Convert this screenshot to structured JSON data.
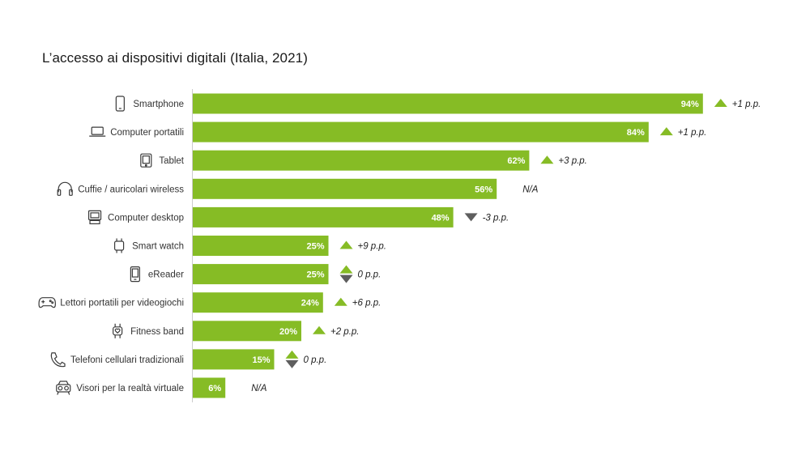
{
  "chart_data": {
    "type": "bar",
    "orientation": "horizontal",
    "title": "L’accesso ai dispositivi digitali (Italia, 2021)",
    "xlim": [
      0,
      100
    ],
    "grid": false,
    "categories": [
      "Smartphone",
      "Computer portatili",
      "Tablet",
      "Cuffie / auricolari wireless",
      "Computer desktop",
      "Smart watch",
      "eReader",
      "Lettori portatili per videogiochi",
      "Fitness band",
      "Telefoni cellulari tradizionali",
      "Visori per la realtà virtuale"
    ],
    "values": [
      94,
      84,
      62,
      56,
      48,
      25,
      25,
      24,
      20,
      15,
      6
    ],
    "value_labels": [
      "94%",
      "84%",
      "62%",
      "56%",
      "48%",
      "25%",
      "25%",
      "24%",
      "20%",
      "15%",
      "6%"
    ],
    "changes": [
      "+1 p.p.",
      "+1 p.p.",
      "+3 p.p.",
      "N/A",
      "-3 p.p.",
      "+9 p.p.",
      "0 p.p.",
      "+6 p.p.",
      "+2 p.p.",
      "0 p.p.",
      "N/A"
    ],
    "change_direction": [
      "up",
      "up",
      "up",
      "none",
      "down",
      "up",
      "flat",
      "up",
      "up",
      "flat",
      "none"
    ],
    "icons": [
      "smartphone-icon",
      "laptop-icon",
      "tablet-icon",
      "headphones-icon",
      "desktop-icon",
      "smartwatch-icon",
      "ereader-icon",
      "gamepad-icon",
      "fitness-band-icon",
      "phone-icon",
      "vr-headset-icon"
    ]
  },
  "colors": {
    "bar": "#86bc25",
    "up_arrow": "#86bc25",
    "down_arrow": "#5e5e5e",
    "axis": "#cccccc"
  }
}
